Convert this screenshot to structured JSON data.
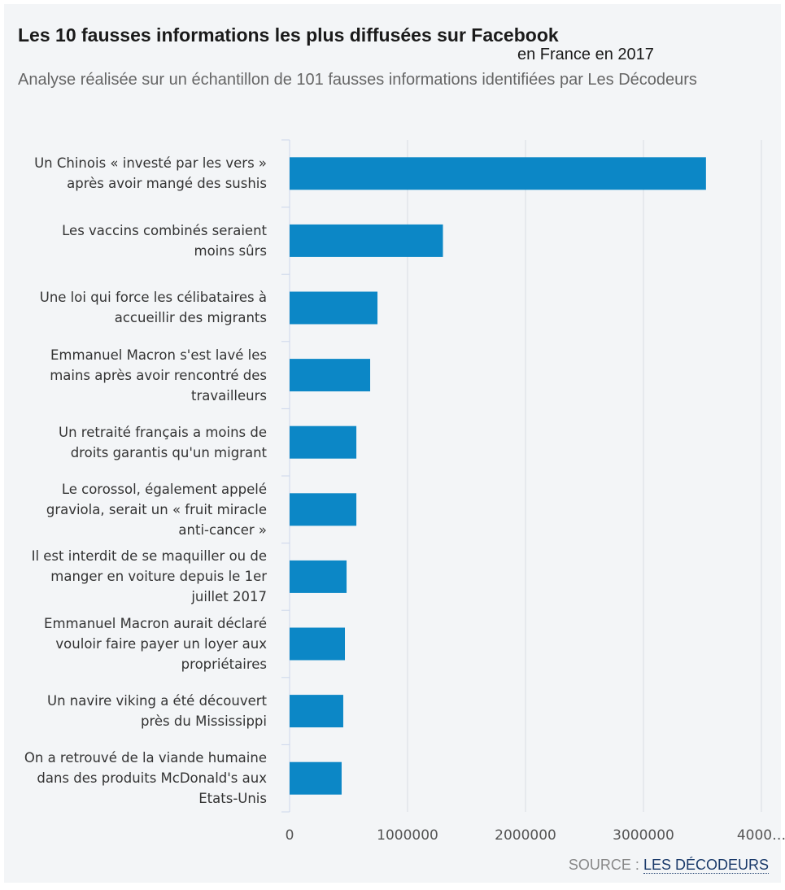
{
  "chart_data": {
    "type": "bar",
    "orientation": "horizontal",
    "title": "Les 10 fausses informations les plus diffusées sur Facebook",
    "title_suffix": "en France en 2017",
    "subtitle": "Analyse réalisée sur un échantillon de 101 fausses informations identifiées par Les Décodeurs",
    "categories": [
      "Un Chinois « investé par les vers » après avoir mangé des sushis",
      "Les vaccins combinés seraient moins sûrs",
      "Une loi qui force les célibataires à accueillir des migrants",
      "Emmanuel Macron s'est lavé les mains après avoir rencontré des travailleurs",
      "Un retraité français a moins de droits garantis qu'un migrant",
      "Le corossol, également appelé graviola, serait un « fruit miracle anti-cancer »",
      "Il est interdit de se maquiller ou de manger en voiture depuis le 1er juillet 2017",
      "Emmanuel Macron aurait déclaré vouloir faire payer un loyer aux propriétaires",
      "Un navire viking a été découvert près du Mississippi",
      "On a retrouvé de la viande humaine dans des produits McDonald's aux Etats-Unis"
    ],
    "values": [
      3530000,
      1300000,
      745000,
      683000,
      566000,
      566000,
      483000,
      469000,
      455000,
      441000
    ],
    "color": "#0c87c6",
    "xlim": [
      0,
      4000000
    ],
    "xticks": [
      0,
      1000000,
      2000000,
      3000000,
      {
        "value": 4000000,
        "label": "4000…"
      }
    ],
    "grid": true,
    "source_label": "SOURCE :",
    "source_link": "LES DÉCODEURS"
  }
}
